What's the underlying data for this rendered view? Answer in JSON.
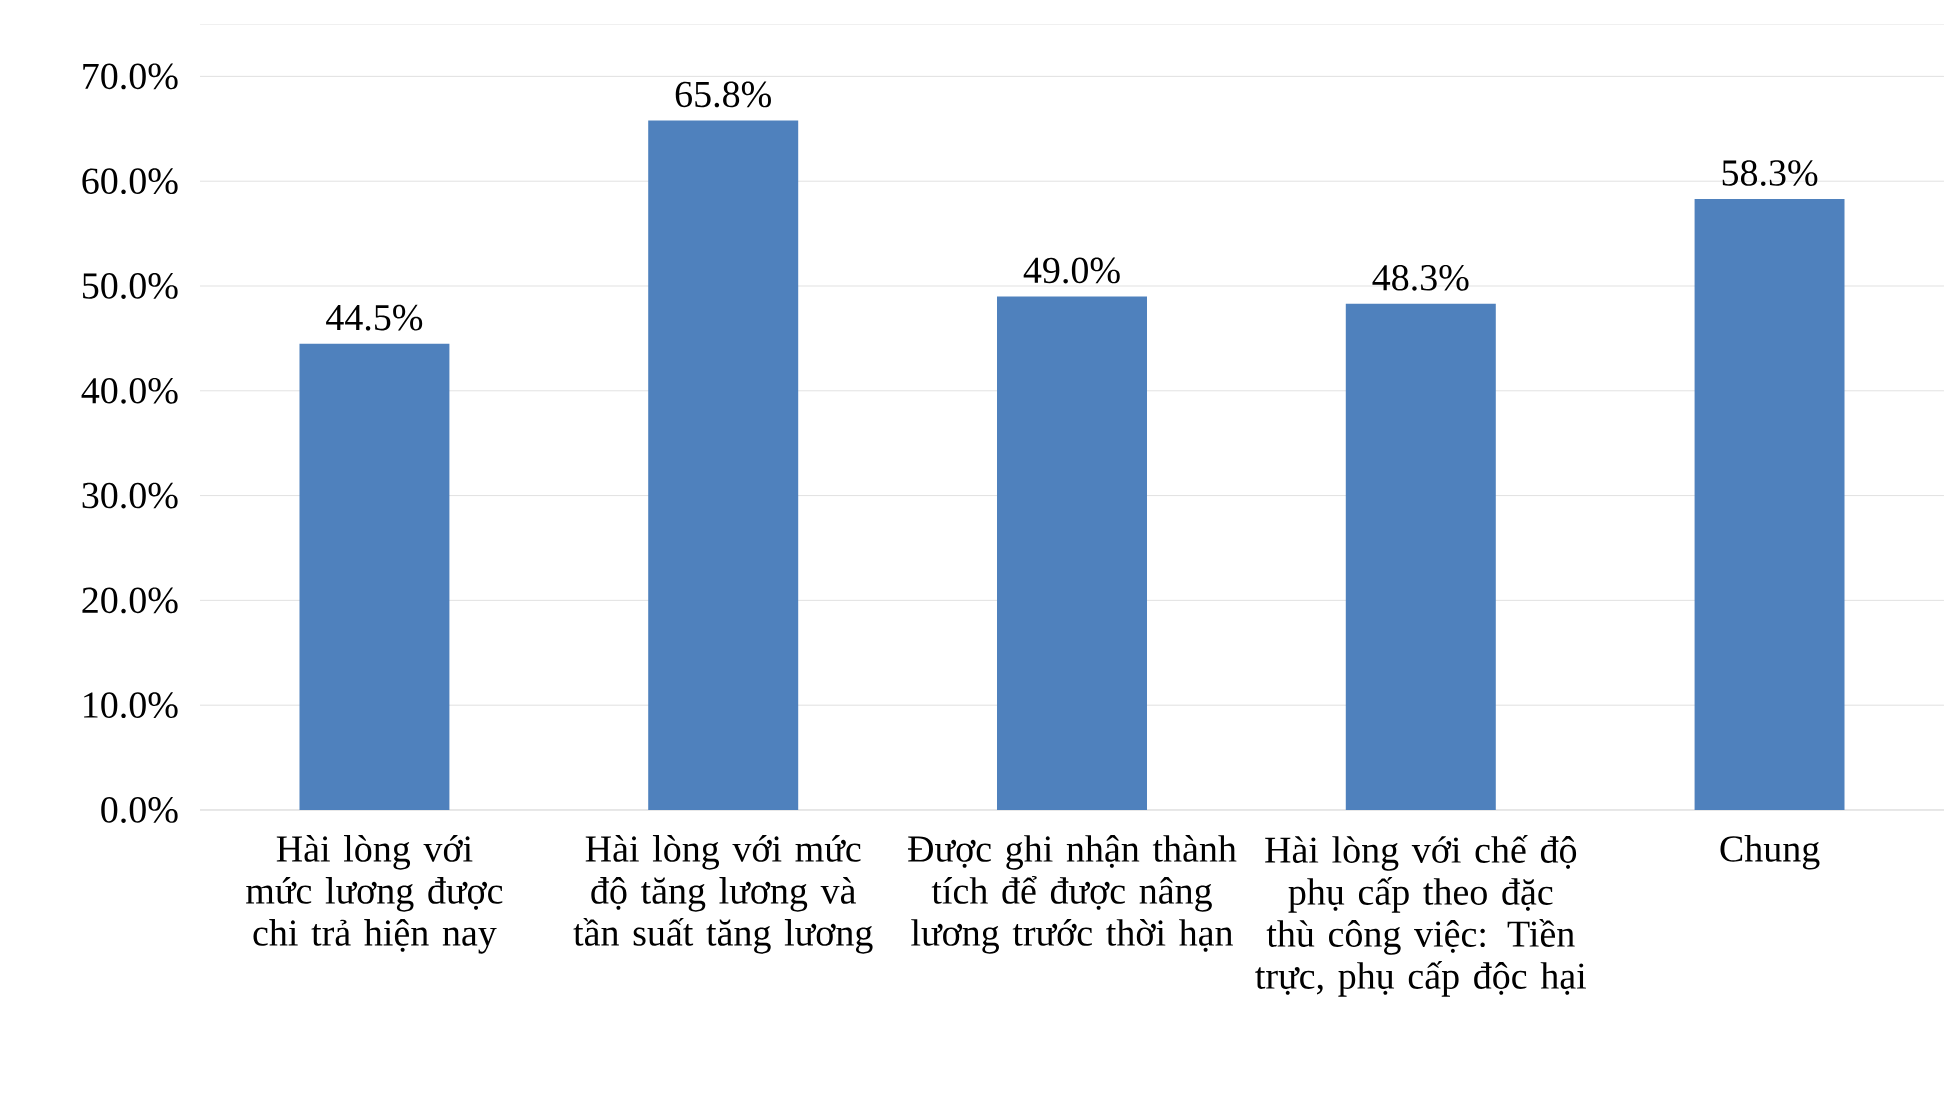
{
  "chart_data": {
    "type": "bar",
    "categories": [
      "Hài lòng với mức lương được chi trả hiện nay",
      "Hài lòng với mức độ tăng lương và tần suất tăng lương",
      "Được ghi nhận thành tích để được nâng lương trước thời hạn",
      "Hài lòng với chế độ phụ cấp theo đặc thù công việc: Tiền trực, phụ cấp độc hại",
      "Chung"
    ],
    "values": [
      44.5,
      65.8,
      49.0,
      48.3,
      58.3
    ],
    "color": "#4f81bd",
    "ylim": [
      0,
      75
    ],
    "yticks": [
      {
        "value": 0,
        "label": "0.0%"
      },
      {
        "value": 10,
        "label": "10.0%"
      },
      {
        "value": 20,
        "label": "20.0%"
      },
      {
        "value": 30,
        "label": "30.0%"
      },
      {
        "value": 40,
        "label": "40.0%"
      },
      {
        "value": 50,
        "label": "50.0%"
      },
      {
        "value": 60,
        "label": "60.0%"
      },
      {
        "value": 70,
        "label": "70.0%"
      }
    ],
    "value_labels": [
      "44.5%",
      "65.8%",
      "49.0%",
      "48.3%",
      "58.3%"
    ],
    "grid": "y"
  }
}
